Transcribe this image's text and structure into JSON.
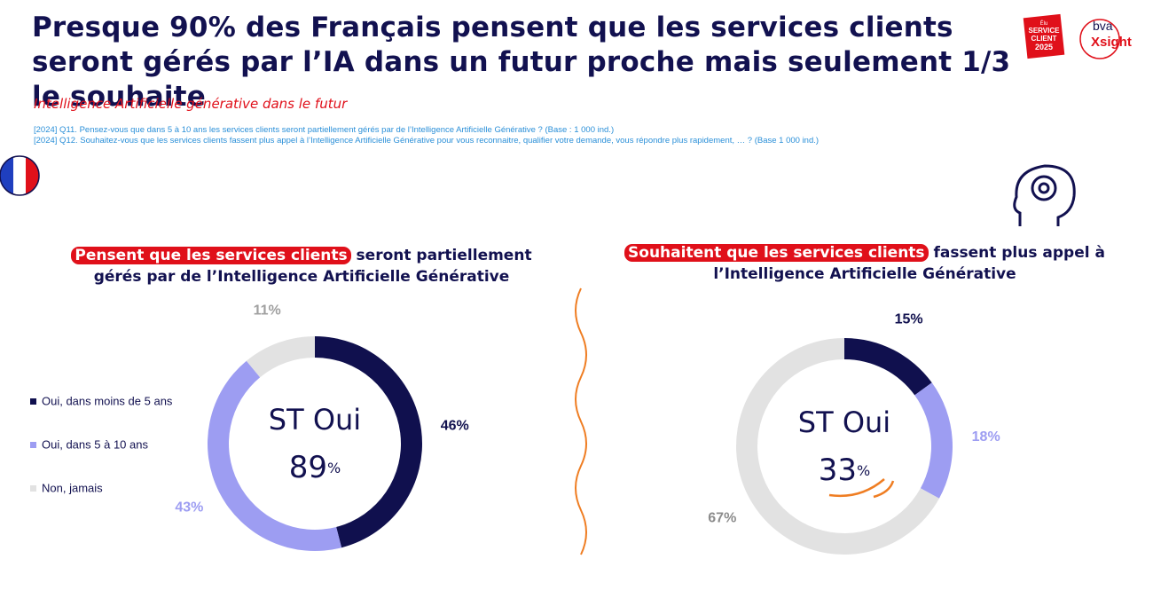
{
  "header": {
    "title": "Presque 90% des Français pensent que les services clients seront gérés par l’IA dans un futur proche mais seulement 1/3 le souhaite",
    "subtitle": "Intelligence Artificielle générative dans le futur",
    "questions": [
      "[2024] Q11. Pensez-vous que dans 5 à 10 ans les services clients seront partiellement gérés par de l’Intelligence Artificielle Générative ? (Base : 1 000 ind.)",
      "[2024] Q12. Souhaitez-vous que les services clients fassent plus appel à l’Intelligence Artificielle Générative pour vous reconnaitre, qualifier votre demande, vous répondre plus rapidement, … ? (Base 1 000 ind.)"
    ],
    "logo_award": [
      "Élu",
      "SERVICE",
      "CLIENT",
      "2025"
    ],
    "logo_brand": [
      "bva",
      "Xsight"
    ]
  },
  "chart_data": [
    {
      "type": "donut",
      "title_highlight": "Pensent que les services clients",
      "title_rest": "seront partiellement gérés par de l’Intelligence Artificielle Générative",
      "categories": [
        "Oui, dans moins de 5 ans",
        "Oui, dans 5 à 10 ans",
        "Non, jamais"
      ],
      "values": [
        46,
        43,
        11
      ],
      "value_labels": [
        "46%",
        "43%",
        "11%"
      ],
      "colors": [
        "#10104e",
        "#9d9df2",
        "#e2e2e2"
      ],
      "label_colors": [
        "#10104e",
        "#9d9df2",
        "#a0a0a0"
      ],
      "center_label": "ST Oui",
      "center_value": 89,
      "center_unit": "%",
      "legend": "left"
    },
    {
      "type": "donut",
      "title_highlight": "Souhaitent que les services clients",
      "title_rest": "fassent plus appel à l’Intelligence Artificielle Générative",
      "values": [
        15,
        18,
        67
      ],
      "value_labels": [
        "15%",
        "18%",
        "67%"
      ],
      "colors": [
        "#10104e",
        "#9d9df2",
        "#e2e2e2"
      ],
      "label_colors": [
        "#10104e",
        "#9d9df2",
        "#8c8c8c"
      ],
      "center_label": "ST Oui",
      "center_value": 33,
      "center_unit": "%"
    }
  ]
}
